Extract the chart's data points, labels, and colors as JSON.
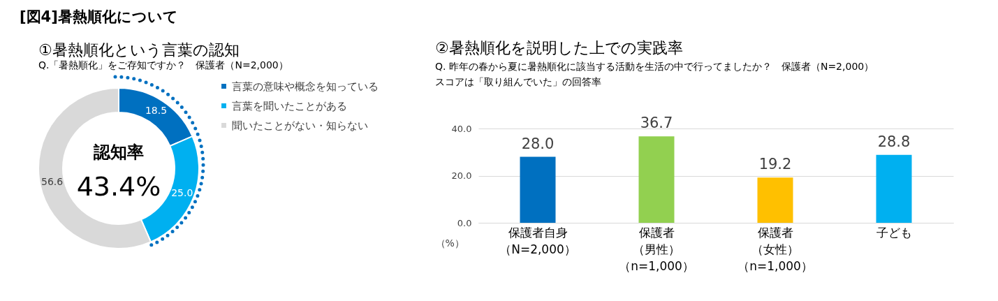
{
  "chart_data": [
    {
      "type": "donut",
      "title": "①暑熱順化という言葉の認知",
      "subtitle": "Q.「暑熱順化」をご存知ですか？　保護者（N=2,000）",
      "categories": [
        "言葉の意味や概念を知っている",
        "言葉を聞いたことがある",
        "聞いたことがない・知らない"
      ],
      "values": [
        18.5,
        25.0,
        56.6
      ],
      "value_labels": [
        "18.5",
        "25.0",
        "56.6"
      ],
      "colors": [
        "#0070c0",
        "#00b0f0",
        "#d9d9d9"
      ],
      "legend": "right",
      "annotations": [
        "[図4]暑熱順化について",
        "認知率",
        "43.4%"
      ]
    },
    {
      "type": "bar",
      "title": "②暑熱順化を説明した上での実践率",
      "subtitle": "Q. 昨年の春から夏に暑熱順化に該当する活動を生活の中で行ってましたか？　保護者（N=2,000）",
      "annotations": [
        "スコアは「取り組んでいた」の回答率"
      ],
      "categories": [
        "保護者自身（N=2,000）",
        "保護者（男性）（n=1,000）",
        "保護者（女性）（n=1,000）",
        "子ども"
      ],
      "values": [
        28.0,
        36.7,
        19.2,
        28.8
      ],
      "value_labels": [
        "28.0",
        "36.7",
        "19.2",
        "28.8"
      ],
      "colors": [
        "#0070c0",
        "#92d050",
        "#ffc000",
        "#00b0f0"
      ],
      "ylabel": "（%）",
      "ylim": [
        0,
        40
      ],
      "yticks": [
        {
          "value": 0,
          "label": "0.0"
        },
        {
          "value": 20,
          "label": "20.0"
        },
        {
          "value": 40,
          "label": "40.0"
        }
      ],
      "grid": "y"
    }
  ]
}
